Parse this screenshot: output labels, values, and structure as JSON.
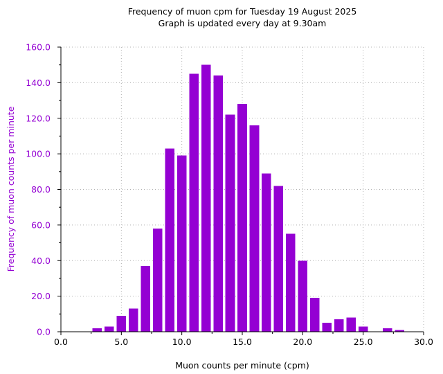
{
  "chart_data": {
    "type": "bar",
    "title": "Frequency of muon cpm for Tuesday 19 August 2025",
    "subtitle": "Graph is updated every day at 9.30am",
    "xlabel": "Muon counts per minute (cpm)",
    "ylabel": "Frequency of muon counts per minute",
    "xlim": [
      0,
      30
    ],
    "ylim": [
      0,
      160
    ],
    "x_ticks": [
      0,
      5,
      10,
      15,
      20,
      25,
      30
    ],
    "x_tick_labels": [
      "0.0",
      "5.0",
      "10.0",
      "15.0",
      "20.0",
      "25.0",
      "30.0"
    ],
    "y_ticks": [
      0,
      20,
      40,
      60,
      80,
      100,
      120,
      140,
      160
    ],
    "y_tick_labels": [
      "0.0",
      "20.0",
      "40.0",
      "60.0",
      "80.0",
      "100.0",
      "120.0",
      "140.0",
      "160.0"
    ],
    "grid": true,
    "bar_color": "#9400d3",
    "ylabel_color": "#9400d3",
    "x": [
      3,
      4,
      5,
      6,
      7,
      8,
      9,
      10,
      11,
      12,
      13,
      14,
      15,
      16,
      17,
      18,
      19,
      20,
      21,
      22,
      23,
      24,
      25,
      27,
      28
    ],
    "values": [
      2,
      3,
      9,
      13,
      37,
      58,
      103,
      99,
      145,
      150,
      144,
      122,
      128,
      116,
      89,
      82,
      55,
      40,
      19,
      5,
      7,
      8,
      3,
      2,
      1
    ]
  }
}
